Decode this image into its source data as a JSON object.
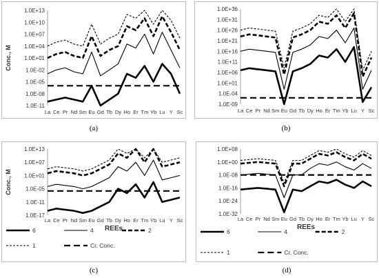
{
  "charts": [
    {
      "type": "line",
      "caption": "(a)",
      "ylabel": "Conc., M",
      "xlabel": "",
      "categories": [
        "La",
        "Ce",
        "Pr",
        "Nd",
        "Sm",
        "Eu",
        "Gd",
        "Tb",
        "Dy",
        "Ho",
        "Er",
        "Tm",
        "Yb",
        "Lu",
        "Y",
        "Sc"
      ],
      "y_log": true,
      "yticks": [
        "1.0E-11",
        "1.0E-08",
        "1.0E-05",
        "1.0E-02",
        "1.0E+01",
        "1.0E+04",
        "1.0E+07",
        "1.0E+10",
        "1.0E+13"
      ],
      "ylim_exp": [
        -11,
        13
      ],
      "legend": false,
      "series": [
        {
          "name": "",
          "style": "thick",
          "values_exp": [
            -10,
            -9.5,
            -9,
            -9.5,
            -10,
            -6,
            -11,
            -9.5,
            -8,
            -3,
            -4,
            -1,
            -5,
            -0.5,
            -3,
            -8
          ]
        },
        {
          "name": "",
          "style": "thin",
          "values_exp": [
            -3,
            -2,
            -1.5,
            -2.5,
            -3,
            2.5,
            -3.5,
            -2,
            -0.5,
            4.5,
            3.5,
            7,
            2,
            7.5,
            3,
            -1.5
          ]
        },
        {
          "name": "",
          "style": "thickdash",
          "values_exp": [
            1,
            2,
            2.5,
            1.5,
            1,
            6.5,
            1.5,
            3,
            4,
            9,
            8,
            11,
            6.5,
            11.5,
            7.5,
            3
          ]
        },
        {
          "name": "",
          "style": "thindash",
          "values_exp": [
            4,
            5,
            5.5,
            4.5,
            4,
            9.5,
            4.5,
            6,
            7,
            12,
            11,
            14,
            9.5,
            14.5,
            10.5,
            6
          ]
        },
        {
          "name": "",
          "style": "crdash",
          "values_exp": [
            -6,
            -6,
            -6,
            -6,
            -6,
            -6,
            -6,
            -6,
            -6,
            -6,
            -6,
            -6,
            -6,
            -6,
            -6,
            -6
          ]
        }
      ]
    },
    {
      "type": "line",
      "caption": "(b)",
      "ylabel": "",
      "xlabel": "",
      "categories": [
        "La",
        "Ce",
        "Pr",
        "Nd",
        "Sm",
        "Eu",
        "Gd",
        "Tb",
        "Dy",
        "Ho",
        "Er",
        "Tm",
        "Yb",
        "Lu",
        "Y",
        "Sc"
      ],
      "y_log": true,
      "yticks": [
        "1.0E-09",
        "1.0E-04",
        "1.0E+01",
        "1.0E+06",
        "1.0E+11",
        "1.0E+16",
        "1.0E+21",
        "1.0E+26",
        "1.0E+31",
        "1.0E+36"
      ],
      "ylim_exp": [
        -9,
        36
      ],
      "legend": false,
      "series": [
        {
          "name": "",
          "style": "thick",
          "values_exp": [
            7,
            8,
            7.5,
            7,
            6.5,
            -9,
            6.5,
            8,
            10,
            14,
            13,
            17,
            11,
            18,
            -8,
            -1
          ]
        },
        {
          "name": "",
          "style": "thin",
          "values_exp": [
            16,
            17,
            16.5,
            16,
            15.5,
            -2,
            15.5,
            17,
            19,
            23,
            22,
            26,
            20,
            27,
            -2,
            7
          ]
        },
        {
          "name": "",
          "style": "thickdash",
          "values_exp": [
            23,
            24,
            23.5,
            23,
            22.5,
            5,
            22.5,
            24,
            26,
            30,
            29,
            33,
            27,
            34,
            4,
            13
          ]
        },
        {
          "name": "",
          "style": "thindash",
          "values_exp": [
            26,
            27,
            26.5,
            26,
            25.5,
            8,
            25.5,
            27,
            29,
            33,
            32,
            36,
            30,
            37,
            7,
            16
          ]
        },
        {
          "name": "",
          "style": "crdash",
          "values_exp": [
            -6,
            -6,
            -6,
            -6,
            -6,
            -6,
            -6,
            -6,
            -6,
            -6,
            -6,
            -6,
            -6,
            -6,
            -6,
            -6
          ]
        }
      ]
    },
    {
      "type": "line",
      "caption": "(c)",
      "ylabel": "Conc., M",
      "xlabel": "REEs",
      "categories": [
        "La",
        "Ce",
        "Pr",
        "Nd",
        "Sm",
        "Eu",
        "Gd",
        "Tb",
        "Dy",
        "Ho",
        "Er",
        "Tm",
        "Yb",
        "Lu",
        "Y",
        "Sc"
      ],
      "y_log": true,
      "yticks": [
        "1.0E-17",
        "1.0E-11",
        "1.0E-05",
        "1.0E+01",
        "1.0E+07",
        "1.0E+13"
      ],
      "ylim_exp": [
        -17,
        13
      ],
      "legend": true,
      "series": [
        {
          "name": "6",
          "style": "thick",
          "values_exp": [
            -15,
            -14,
            -14.5,
            -15,
            -16,
            -15,
            -13,
            -11,
            -5,
            -7,
            -3,
            -9,
            -2,
            -11,
            -10,
            -9
          ]
        },
        {
          "name": "4",
          "style": "thin",
          "values_exp": [
            -4,
            -3,
            -3.5,
            -4,
            -5,
            -4,
            -2,
            0,
            5,
            3,
            7,
            1,
            8,
            -1,
            0,
            1
          ]
        },
        {
          "name": "2",
          "style": "thickdash",
          "values_exp": [
            2,
            3,
            2.5,
            2,
            1,
            2,
            4,
            6,
            11,
            9,
            13,
            7,
            14,
            5,
            6,
            7
          ]
        },
        {
          "name": "1",
          "style": "thindash",
          "values_exp": [
            4,
            5,
            4.5,
            4,
            3,
            4,
            6,
            8,
            13,
            11,
            15,
            9,
            16,
            7,
            8,
            9
          ]
        },
        {
          "name": "Cr. Conc.",
          "style": "crdash",
          "values_exp": [
            -6,
            -6,
            -6,
            -6,
            -6,
            -6,
            -6,
            -6,
            -6,
            -6,
            -6,
            -6,
            -6,
            -6,
            -6,
            -6
          ]
        }
      ]
    },
    {
      "type": "line",
      "caption": "(d)",
      "ylabel": "",
      "xlabel": "REEs",
      "categories": [
        "La",
        "Ce",
        "Pr",
        "Nd",
        "Sm",
        "Eu",
        "Gd",
        "Tb",
        "Dy",
        "Ho",
        "Er",
        "Tm",
        "Yb",
        "Lu",
        "Y",
        "Sc"
      ],
      "y_log": true,
      "yticks": [
        "1.0E-32",
        "1.0E-24",
        "1.0E-16",
        "1.0E-08",
        "1.0E+00",
        "1.0E+08"
      ],
      "ylim_exp": [
        -32,
        8
      ],
      "legend": true,
      "series": [
        {
          "name": "6",
          "style": "thick",
          "values_exp": [
            -17,
            -16.5,
            -16,
            -16.5,
            -17,
            -31,
            -17,
            -18,
            -15,
            -12,
            -13,
            -11,
            -14,
            -16,
            -12,
            -15
          ]
        },
        {
          "name": "4",
          "style": "thin",
          "values_exp": [
            -8,
            -7.5,
            -7,
            -7.5,
            -8,
            -22,
            -8,
            -8,
            -4,
            -1,
            -2,
            0,
            -3,
            -5,
            -1,
            -4
          ]
        },
        {
          "name": "2",
          "style": "thickdash",
          "values_exp": [
            -1,
            -0.5,
            0,
            -0.5,
            -1,
            -15,
            -1,
            -1,
            2,
            5,
            4,
            6,
            3,
            1,
            5,
            2
          ]
        },
        {
          "name": "1",
          "style": "thindash",
          "values_exp": [
            1,
            1.5,
            2,
            1.5,
            1,
            -13,
            1,
            1,
            4,
            7,
            6,
            8,
            5,
            3,
            7,
            4
          ]
        },
        {
          "name": "Cr. Conc.",
          "style": "crdash",
          "values_exp": [
            -8,
            -8,
            -8,
            -8,
            -8,
            -8,
            -8,
            -8,
            -8,
            -8,
            -8,
            -8,
            -8,
            -8,
            -8,
            -8
          ]
        }
      ]
    }
  ]
}
